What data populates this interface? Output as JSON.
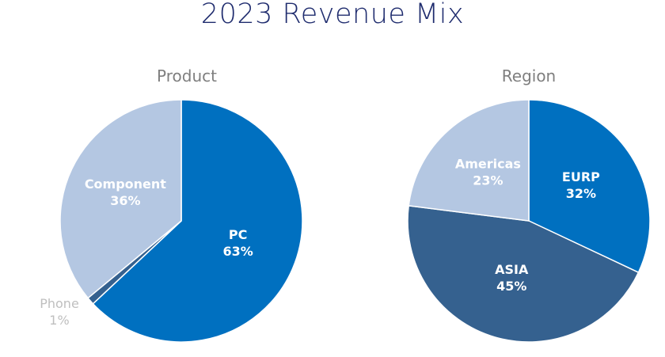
{
  "chart_data": {
    "title": "2023 Revenue Mix",
    "charts": [
      {
        "type": "pie",
        "title": "Product",
        "start": "top",
        "direction": "clockwise",
        "slices": [
          {
            "label": "PC",
            "value": 63,
            "value_label": "63%",
            "color": "#0070C0",
            "label_color": "#FFFFFF",
            "label_position": "inside"
          },
          {
            "label": "Phone",
            "value": 1,
            "value_label": "1%",
            "color": "#35618F",
            "label_color": "#BFBFBF",
            "label_position": "outside"
          },
          {
            "label": "Component",
            "value": 36,
            "value_label": "36%",
            "color": "#B4C7E2",
            "label_color": "#FFFFFF",
            "label_position": "inside"
          }
        ]
      },
      {
        "type": "pie",
        "title": "Region",
        "start": "top",
        "direction": "clockwise",
        "slices": [
          {
            "label": "EURP",
            "value": 32,
            "value_label": "32%",
            "color": "#0070C0",
            "label_color": "#FFFFFF",
            "label_position": "inside"
          },
          {
            "label": "ASIA",
            "value": 45,
            "value_label": "45%",
            "color": "#35618F",
            "label_color": "#FFFFFF",
            "label_position": "inside"
          },
          {
            "label": "Americas",
            "value": 23,
            "value_label": "23%",
            "color": "#B4C7E2",
            "label_color": "#FFFFFF",
            "label_position": "inside"
          }
        ]
      }
    ]
  }
}
